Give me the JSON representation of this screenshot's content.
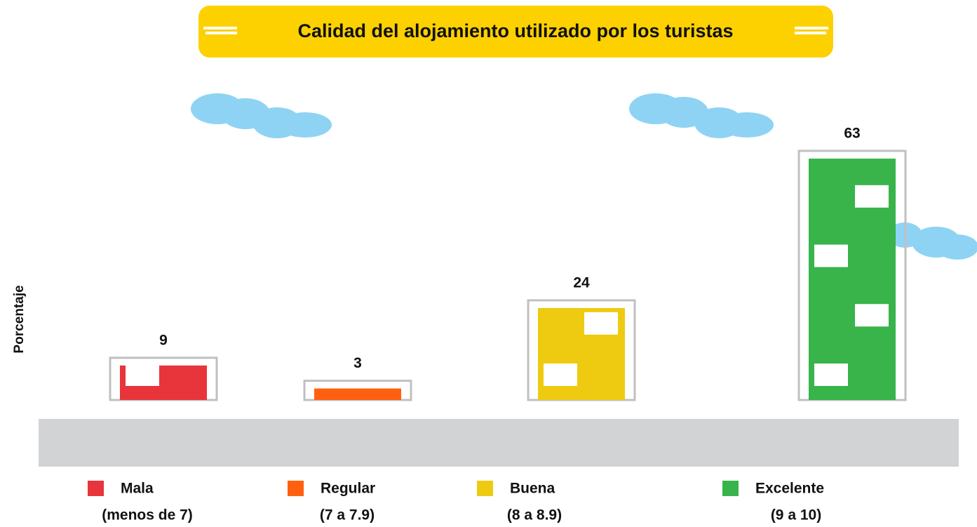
{
  "chart_data": {
    "type": "bar",
    "title": "Calidad del alojamiento utilizado por los turistas",
    "y_label": "Porcentaje",
    "categories": [
      "Mala",
      "Regular",
      "Buena",
      "Excelente"
    ],
    "ranges": [
      "(menos de 7)",
      "(7 a 7.9)",
      "(8 a 8.9)",
      "(9 a 10)"
    ],
    "values": [
      9,
      3,
      24,
      63
    ],
    "colors": [
      "#e8343b",
      "#ff6010",
      "#eecb10",
      "#38b44a"
    ]
  }
}
